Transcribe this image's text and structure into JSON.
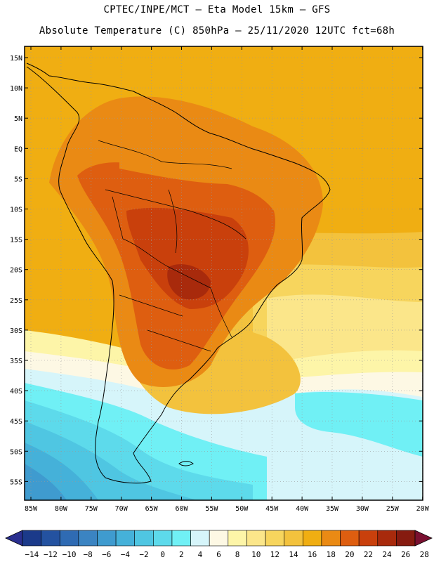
{
  "title_line1": "CPTEC/INPE/MCT –  Eta Model 15km – GFS",
  "title_line2": "Absolute Temperature (C) 850hPa – 25/11/2020 12UTC fct=68h",
  "lat_labels": [
    "15N",
    "10N",
    "5N",
    "EQ",
    "5S",
    "10S",
    "15S",
    "20S",
    "25S",
    "30S",
    "35S",
    "40S",
    "45S",
    "50S",
    "55S"
  ],
  "lon_labels": [
    "85W",
    "80W",
    "75W",
    "70W",
    "65W",
    "60W",
    "55W",
    "50W",
    "45W",
    "40W",
    "35W",
    "30W",
    "25W",
    "20W"
  ],
  "colorbar": {
    "labels": [
      "-14",
      "-12",
      "-10",
      "-8",
      "-6",
      "-4",
      "-2",
      "0",
      "2",
      "4",
      "6",
      "8",
      "10",
      "12",
      "14",
      "16",
      "18",
      "20",
      "22",
      "24",
      "26",
      "28"
    ],
    "colors": [
      "#1b3a8a",
      "#2452a0",
      "#2f6bb3",
      "#3b84c2",
      "#3f9bcf",
      "#45b1d9",
      "#4fc6e2",
      "#5ddaeb",
      "#70f0f5",
      "#d6f5fa",
      "#fdf8e4",
      "#fdf5a8",
      "#fbe68a",
      "#f7d55d",
      "#f3c23d",
      "#f0ae12",
      "#ea8a14",
      "#de5e10",
      "#c9400c",
      "#a82a0c",
      "#861b10"
    ],
    "low_color": "#2a2f8f",
    "high_color": "#7a1030"
  },
  "colors": {
    "ocean_warm": "#f0ae12",
    "land_hot": "#de5e10",
    "cold_deep": "#3f9bcf"
  }
}
